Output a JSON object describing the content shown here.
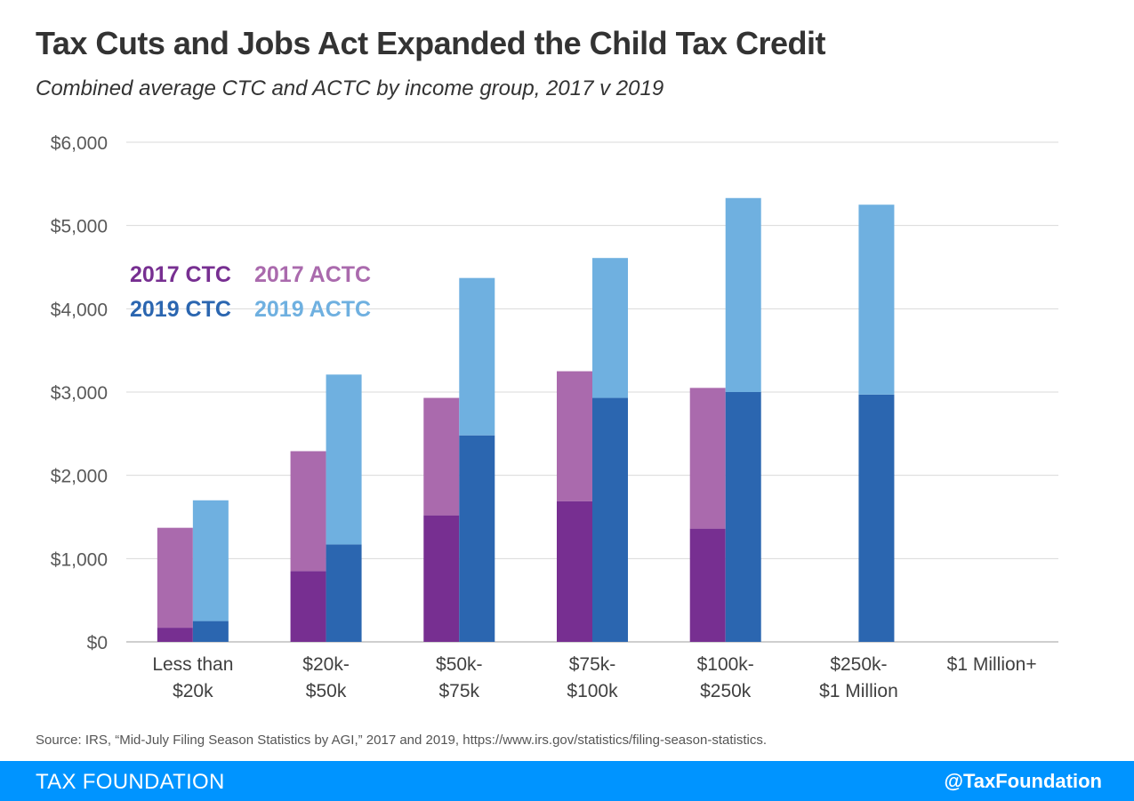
{
  "title": "Tax Cuts and Jobs Act Expanded the Child Tax Credit",
  "subtitle": "Combined average CTC and ACTC by income group, 2017 v 2019",
  "source": "Source: IRS, “Mid-July Filing Season Statistics by AGI,” 2017 and 2019, https://www.irs.gov/statistics/filing-season-statistics.",
  "footer": {
    "brand": "TAX FOUNDATION",
    "handle": "@TaxFoundation"
  },
  "chart_data": {
    "type": "bar",
    "stacked": true,
    "grouped": true,
    "categories": [
      [
        "Less than",
        "$20k"
      ],
      [
        "$20k-",
        "$50k"
      ],
      [
        "$50k-",
        "$75k"
      ],
      [
        "$75k-",
        "$100k"
      ],
      [
        "$100k-",
        "$250k"
      ],
      [
        "$250k-",
        "$1 Million"
      ],
      [
        "$1 Million+"
      ]
    ],
    "yticks": [
      "$0",
      "$1,000",
      "$2,000",
      "$3,000",
      "$4,000",
      "$5,000",
      "$6,000"
    ],
    "ylim": [
      0,
      6000
    ],
    "series": [
      {
        "name": "2017 CTC",
        "group": "2017",
        "color": "#772f91",
        "values": [
          170,
          850,
          1520,
          1690,
          1360,
          null,
          null
        ]
      },
      {
        "name": "2017 ACTC",
        "group": "2017",
        "color": "#aa6aad",
        "values": [
          1200,
          1440,
          1410,
          1560,
          1690,
          null,
          null
        ]
      },
      {
        "name": "2019 CTC",
        "group": "2019",
        "color": "#2b66b0",
        "values": [
          250,
          1170,
          2480,
          2930,
          3000,
          2970,
          null
        ]
      },
      {
        "name": "2019 ACTC",
        "group": "2019",
        "color": "#6fb0e0",
        "values": [
          1450,
          2040,
          1890,
          1680,
          2330,
          2280,
          null
        ]
      }
    ],
    "legend": [
      [
        "2017 CTC",
        "2017 ACTC"
      ],
      [
        "2019 CTC",
        "2019 ACTC"
      ]
    ]
  }
}
